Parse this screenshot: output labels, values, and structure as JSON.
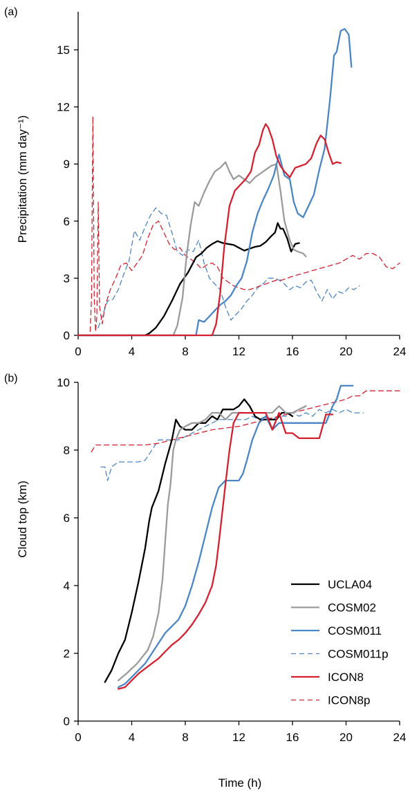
{
  "chart_data": [
    {
      "type": "line",
      "panel_label": "(a)",
      "title": "",
      "xlabel": "",
      "ylabel": "Precipitation (mm day⁻¹)",
      "xlim": [
        0,
        24
      ],
      "ylim": [
        0,
        17
      ],
      "xticks": [
        0,
        4,
        8,
        12,
        16,
        20,
        24
      ],
      "yticks": [
        0,
        3,
        6,
        9,
        12,
        15
      ],
      "legend": "none",
      "grid": false,
      "series": [
        {
          "name": "UCLA04",
          "color": "#000000",
          "dash": "solid",
          "x": [
            0,
            5,
            5.3,
            5.8,
            6.4,
            7.0,
            7.6,
            8.2,
            8.8,
            9.2,
            9.6,
            10.0,
            10.4,
            10.8,
            11.2,
            11.6,
            12.0,
            12.4,
            12.8,
            13.2,
            13.6,
            14.0,
            14.4,
            14.7,
            14.9,
            15.1,
            15.3,
            15.6,
            15.9,
            16.2,
            16.5
          ],
          "y": [
            0,
            0,
            0.1,
            0.4,
            1.0,
            1.8,
            2.7,
            3.3,
            4.1,
            4.3,
            4.6,
            4.8,
            4.95,
            4.85,
            4.8,
            4.75,
            4.6,
            4.45,
            4.55,
            4.65,
            4.7,
            4.9,
            5.2,
            5.4,
            5.9,
            5.6,
            5.6,
            5.1,
            4.4,
            4.8,
            4.85
          ]
        },
        {
          "name": "COSM02",
          "color": "#9b9b9b",
          "dash": "solid",
          "x": [
            0,
            7.1,
            7.4,
            7.8,
            8.1,
            8.4,
            8.7,
            9.0,
            9.4,
            9.8,
            10.2,
            10.6,
            11.0,
            11.3,
            11.6,
            12.0,
            12.4,
            12.8,
            13.2,
            13.6,
            14.0,
            14.4,
            14.8,
            15.1,
            15.4,
            15.8,
            16.1,
            16.4,
            16.8,
            17.0
          ],
          "y": [
            0,
            0,
            0.5,
            2.0,
            4.2,
            5.8,
            7.0,
            6.8,
            7.5,
            8.1,
            8.6,
            8.8,
            9.1,
            8.6,
            8.2,
            8.4,
            8.2,
            8.0,
            8.3,
            8.5,
            8.7,
            8.9,
            9.0,
            7.6,
            6.0,
            5.0,
            4.5,
            4.4,
            4.3,
            4.15
          ]
        },
        {
          "name": "COSM011",
          "color": "#4a86c5",
          "dash": "solid",
          "x": [
            0,
            8.8,
            9.0,
            9.4,
            9.8,
            10.2,
            10.6,
            11.0,
            11.4,
            11.8,
            12.2,
            12.6,
            13.0,
            13.4,
            13.8,
            14.2,
            14.6,
            15.0,
            15.4,
            15.8,
            16.1,
            16.4,
            16.8,
            17.2,
            17.6,
            18.0,
            18.4,
            18.8,
            19.1,
            19.3,
            19.6,
            19.9,
            20.2,
            20.4
          ],
          "y": [
            0,
            0,
            0.8,
            0.7,
            1.0,
            1.3,
            1.6,
            1.8,
            2.1,
            2.6,
            3.0,
            3.9,
            5.4,
            6.4,
            7.1,
            7.7,
            8.4,
            9.5,
            8.4,
            8.2,
            7.0,
            6.4,
            6.2,
            6.8,
            7.4,
            8.7,
            9.8,
            12.4,
            14.7,
            14.9,
            16.0,
            16.1,
            15.8,
            14.1
          ]
        },
        {
          "name": "ICON8",
          "color": "#d4202f",
          "dash": "solid",
          "x": [
            0,
            10.0,
            10.3,
            10.6,
            10.9,
            11.3,
            11.7,
            12.1,
            12.5,
            12.9,
            13.2,
            13.5,
            13.8,
            14.0,
            14.2,
            14.5,
            14.8,
            15.1,
            15.4,
            15.8,
            16.2,
            16.6,
            17.0,
            17.4,
            17.8,
            18.1,
            18.4,
            18.7,
            19.0,
            19.3,
            19.6
          ],
          "y": [
            0,
            0,
            0.6,
            2.2,
            4.6,
            6.8,
            7.6,
            7.9,
            8.2,
            8.6,
            9.6,
            10.0,
            10.8,
            11.1,
            10.9,
            10.3,
            9.4,
            8.9,
            8.6,
            8.3,
            8.8,
            8.9,
            9.0,
            9.3,
            10.1,
            10.5,
            10.3,
            9.6,
            9.0,
            9.1,
            9.05
          ]
        },
        {
          "name": "COSM011p",
          "color": "#4a86c5",
          "dash": "dashed",
          "x": [
            1.5,
            1.9,
            2.2,
            2.6,
            3.0,
            3.4,
            3.8,
            4.2,
            4.6,
            5.0,
            5.4,
            5.8,
            6.2,
            6.6,
            7.0,
            7.4,
            7.8,
            8.2,
            8.6,
            9.0,
            9.4,
            9.8,
            10.2,
            10.6,
            11.0,
            11.4,
            11.8,
            12.2,
            12.6,
            13.0,
            13.4,
            13.8,
            14.2,
            14.6,
            15.0,
            15.4,
            15.8,
            16.2,
            16.6,
            17.0,
            17.4,
            17.8,
            18.2,
            18.6,
            19.0,
            19.4,
            19.8,
            20.2,
            20.6,
            21.0
          ],
          "y": [
            0.4,
            1.2,
            1.8,
            1.9,
            2.4,
            3.2,
            3.9,
            5.5,
            5.0,
            5.7,
            6.3,
            6.7,
            6.4,
            6.3,
            5.4,
            4.4,
            4.2,
            4.5,
            4.4,
            5.0,
            3.8,
            3.0,
            2.7,
            2.4,
            1.5,
            0.8,
            1.1,
            1.4,
            1.8,
            2.1,
            2.5,
            2.7,
            3.0,
            3.0,
            2.9,
            2.7,
            2.4,
            2.6,
            2.5,
            2.8,
            2.9,
            2.3,
            1.8,
            2.4,
            1.9,
            2.3,
            2.2,
            2.5,
            2.4,
            2.6
          ]
        },
        {
          "name": "ICON8p",
          "color": "#d4202f",
          "dash": "dashed",
          "x": [
            0.9,
            1.0,
            1.1,
            1.2,
            1.3,
            1.4,
            1.5,
            1.6,
            1.8,
            2.0,
            2.4,
            2.8,
            3.2,
            3.6,
            4.0,
            4.4,
            4.8,
            5.2,
            5.6,
            6.0,
            6.4,
            6.8,
            7.2,
            7.6,
            8.0,
            8.4,
            8.8,
            9.2,
            9.6,
            10.0,
            10.4,
            10.8,
            11.2,
            11.6,
            12.0,
            12.4,
            12.8,
            13.2,
            13.6,
            14.0,
            14.4,
            14.8,
            15.2,
            15.6,
            16.0,
            16.5,
            17.0,
            17.5,
            18.0,
            18.5,
            19.0,
            19.5,
            20.0,
            20.5,
            21.0,
            21.5,
            22.0,
            22.5,
            23.0,
            23.5,
            24.0
          ],
          "y": [
            0.2,
            2.0,
            11.5,
            2.0,
            0.2,
            1.0,
            7.0,
            1.5,
            0.6,
            1.5,
            2.4,
            3.0,
            3.7,
            3.8,
            3.4,
            3.8,
            4.2,
            5.1,
            5.8,
            6.0,
            5.4,
            4.8,
            4.5,
            4.6,
            4.2,
            4.0,
            3.8,
            3.5,
            3.7,
            3.8,
            3.6,
            3.0,
            2.8,
            2.6,
            2.5,
            2.4,
            2.4,
            2.5,
            2.6,
            2.7,
            2.8,
            2.9,
            2.9,
            3.0,
            3.1,
            3.2,
            3.3,
            3.4,
            3.5,
            3.6,
            3.7,
            3.8,
            4.0,
            4.2,
            4.0,
            4.3,
            4.3,
            4.1,
            3.6,
            3.5,
            3.8
          ]
        }
      ]
    },
    {
      "type": "line",
      "panel_label": "(b)",
      "title": "",
      "xlabel": "Time (h)",
      "ylabel": "Cloud top (km)",
      "xlim": [
        0,
        24
      ],
      "ylim": [
        0,
        10
      ],
      "xticks": [
        0,
        4,
        8,
        12,
        16,
        20,
        24
      ],
      "yticks": [
        0,
        2,
        4,
        6,
        8,
        10
      ],
      "legend": "right",
      "grid": false,
      "series": [
        {
          "name": "UCLA04",
          "color": "#000000",
          "dash": "solid",
          "x": [
            2.0,
            2.5,
            3.0,
            3.5,
            4.0,
            4.5,
            5.0,
            5.3,
            5.5,
            6.0,
            6.5,
            7.0,
            7.3,
            7.6,
            8.0,
            8.5,
            9.0,
            9.5,
            10.0,
            10.4,
            10.8,
            11.2,
            11.6,
            12.0,
            12.4,
            12.8,
            13.2,
            13.6,
            14.0,
            14.4,
            14.8,
            15.2,
            15.6,
            16.0
          ],
          "y": [
            1.15,
            1.5,
            2.0,
            2.4,
            3.2,
            4.1,
            5.1,
            5.9,
            6.3,
            6.8,
            7.6,
            8.3,
            8.9,
            8.7,
            8.6,
            8.6,
            8.8,
            8.8,
            9.0,
            8.9,
            9.2,
            9.2,
            9.2,
            9.3,
            9.5,
            9.3,
            9.0,
            8.9,
            8.9,
            8.9,
            8.9,
            9.1,
            9.1,
            9.0
          ]
        },
        {
          "name": "COSM02",
          "color": "#9b9b9b",
          "dash": "solid",
          "x": [
            3.0,
            3.3,
            3.6,
            4.0,
            4.4,
            4.8,
            5.2,
            5.6,
            6.0,
            6.3,
            6.5,
            6.7,
            6.9,
            7.0,
            7.1,
            7.3,
            7.6,
            8.0,
            8.5,
            9.0,
            9.5,
            10.0,
            10.5,
            11.0,
            11.5,
            12.0,
            12.5,
            13.0,
            13.5,
            14.0,
            14.5,
            15.0,
            15.5,
            16.0,
            16.5,
            17.0
          ],
          "y": [
            1.2,
            1.3,
            1.4,
            1.55,
            1.7,
            1.9,
            2.1,
            2.5,
            3.2,
            4.2,
            5.3,
            6.4,
            7.0,
            7.5,
            8.0,
            8.3,
            8.6,
            8.7,
            8.8,
            8.8,
            8.9,
            9.1,
            9.1,
            8.9,
            9.1,
            9.1,
            9.1,
            9.1,
            9.1,
            9.1,
            9.1,
            9.3,
            9.1,
            9.1,
            9.2,
            9.3
          ]
        },
        {
          "name": "COSM011",
          "color": "#4a86c5",
          "dash": "solid",
          "x": [
            3.0,
            3.5,
            4.0,
            4.5,
            5.0,
            5.5,
            6.0,
            6.5,
            7.0,
            7.5,
            8.0,
            8.5,
            9.0,
            9.5,
            10.0,
            10.5,
            11.0,
            11.5,
            12.0,
            12.3,
            12.6,
            13.0,
            13.5,
            14.0,
            14.5,
            15.0,
            15.5,
            16.0,
            16.5,
            17.0,
            17.5,
            18.0,
            18.5,
            19.0,
            19.3,
            19.6,
            20.0,
            20.5
          ],
          "y": [
            1.0,
            1.1,
            1.3,
            1.5,
            1.7,
            2.0,
            2.3,
            2.6,
            2.8,
            3.0,
            3.4,
            4.0,
            4.7,
            5.5,
            6.3,
            6.9,
            7.1,
            7.1,
            7.1,
            7.3,
            7.7,
            8.3,
            8.8,
            9.0,
            8.6,
            8.8,
            8.8,
            8.8,
            8.8,
            8.8,
            8.8,
            8.8,
            8.8,
            9.3,
            9.5,
            9.9,
            9.9,
            9.9
          ]
        },
        {
          "name": "COSM011p",
          "color": "#4a86c5",
          "dash": "dashed",
          "x": [
            1.7,
            2.0,
            2.2,
            2.5,
            3.0,
            3.5,
            4.0,
            4.5,
            5.0,
            5.5,
            6.0,
            6.5,
            7.0,
            7.5,
            8.0,
            8.5,
            9.0,
            9.5,
            10.0,
            10.5,
            11.0,
            11.5,
            12.0,
            12.5,
            13.0,
            13.5,
            14.0,
            14.5,
            15.0,
            15.5,
            16.0,
            16.5,
            17.0,
            17.5,
            18.0,
            18.5,
            19.0,
            19.5,
            20.0,
            20.5,
            21.0,
            21.3
          ],
          "y": [
            7.5,
            7.5,
            7.1,
            7.5,
            7.65,
            7.65,
            7.65,
            7.65,
            7.7,
            8.0,
            8.3,
            8.3,
            8.3,
            8.3,
            8.4,
            8.5,
            8.6,
            8.7,
            8.8,
            8.9,
            8.9,
            8.9,
            8.9,
            8.9,
            9.0,
            8.9,
            9.0,
            8.9,
            9.0,
            9.0,
            9.1,
            9.0,
            9.1,
            9.0,
            9.2,
            9.1,
            9.2,
            9.1,
            9.2,
            9.1,
            9.1,
            9.1
          ]
        },
        {
          "name": "ICON8",
          "color": "#d4202f",
          "dash": "solid",
          "x": [
            3.0,
            3.5,
            4.0,
            4.5,
            5.0,
            5.5,
            6.0,
            6.5,
            7.0,
            7.5,
            8.0,
            8.5,
            9.0,
            9.5,
            10.0,
            10.3,
            10.6,
            11.0,
            11.3,
            11.6,
            12.0,
            12.5,
            13.0,
            13.5,
            14.0,
            14.5,
            15.0,
            15.5,
            16.0,
            16.5,
            17.0,
            17.5,
            18.0,
            18.5,
            19.0
          ],
          "y": [
            0.95,
            1.0,
            1.2,
            1.4,
            1.55,
            1.7,
            1.85,
            2.05,
            2.25,
            2.4,
            2.6,
            2.85,
            3.15,
            3.5,
            4.0,
            4.6,
            5.6,
            7.0,
            8.0,
            8.8,
            9.1,
            9.1,
            9.1,
            9.1,
            9.1,
            8.6,
            9.1,
            8.5,
            8.5,
            8.35,
            8.35,
            8.35,
            8.35,
            9.05,
            9.05
          ]
        },
        {
          "name": "ICON8p",
          "color": "#d4202f",
          "dash": "dashed",
          "x": [
            1.0,
            1.3,
            2.0,
            3.0,
            4.0,
            5.0,
            6.0,
            7.0,
            8.0,
            9.0,
            10.0,
            11.0,
            12.0,
            13.0,
            14.0,
            15.0,
            16.0,
            17.0,
            18.0,
            19.0,
            20.0,
            20.5,
            21.0,
            21.5,
            22.0,
            23.0,
            24.0
          ],
          "y": [
            7.95,
            8.15,
            8.15,
            8.15,
            8.15,
            8.15,
            8.2,
            8.3,
            8.4,
            8.5,
            8.6,
            8.65,
            8.7,
            8.8,
            8.9,
            9.0,
            9.1,
            9.2,
            9.3,
            9.4,
            9.5,
            9.6,
            9.6,
            9.75,
            9.75,
            9.75,
            9.75
          ]
        }
      ]
    }
  ]
}
